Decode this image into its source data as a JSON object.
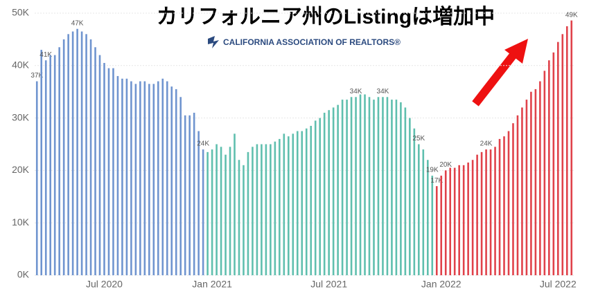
{
  "chart_data": {
    "type": "bar",
    "title": "カリフォルニア州のListingは増加中",
    "subtitle": "CALIFORNIA ASSOCIATION OF REALTORS®",
    "categories": [
      null,
      null,
      null,
      null,
      null,
      null,
      null,
      null,
      null,
      null,
      null,
      null,
      null,
      null,
      null,
      "Jul 2020",
      null,
      null,
      null,
      null,
      null,
      null,
      null,
      null,
      null,
      null,
      null,
      null,
      null,
      null,
      null,
      null,
      null,
      null,
      null,
      null,
      null,
      null,
      null,
      "Jan 2021",
      null,
      null,
      null,
      null,
      null,
      null,
      null,
      null,
      null,
      null,
      null,
      null,
      null,
      null,
      null,
      null,
      null,
      null,
      null,
      null,
      null,
      null,
      null,
      null,
      null,
      "Jul 2021",
      null,
      null,
      null,
      null,
      null,
      null,
      null,
      null,
      null,
      null,
      null,
      null,
      null,
      null,
      null,
      null,
      null,
      null,
      null,
      null,
      null,
      null,
      null,
      null,
      "Jan 2022",
      null,
      null,
      null,
      null,
      null,
      null,
      null,
      null,
      null,
      null,
      null,
      null,
      null,
      null,
      null,
      null,
      null,
      null,
      null,
      null,
      null,
      null,
      null,
      null,
      null,
      "Jul 2022",
      null,
      null,
      null
    ],
    "series": [
      {
        "color": "#6f94cf",
        "values": [
          37,
          43,
          41,
          42,
          42,
          43.5,
          45,
          46,
          46.5,
          47,
          46.5,
          46,
          45,
          43.5,
          42,
          40.5,
          39.5,
          39.5,
          38,
          37.5,
          37.5,
          37,
          36.5,
          37,
          37,
          36.5,
          36.5,
          37,
          37.5,
          37,
          36,
          35.5,
          34,
          30.5,
          30.5,
          31,
          27.5,
          24,
          null,
          null,
          null,
          null,
          null,
          null,
          null,
          null,
          null,
          null,
          null,
          null,
          null,
          null,
          null,
          null,
          null,
          null,
          null,
          null,
          null,
          null,
          null,
          null,
          null,
          null,
          null,
          null,
          null,
          null,
          null,
          null,
          null,
          null,
          null,
          null,
          null,
          null,
          null,
          null,
          null,
          null,
          null,
          null,
          null,
          null,
          null,
          null,
          null,
          null,
          null,
          null,
          null,
          null,
          null,
          null,
          null,
          null,
          null,
          null,
          null,
          null,
          null,
          null,
          null,
          null,
          null,
          null,
          null,
          null,
          null,
          null,
          null,
          null,
          null,
          null,
          null,
          null,
          null,
          null,
          null,
          null
        ],
        "value_labels": [
          "37K",
          null,
          "41K",
          null,
          null,
          null,
          null,
          null,
          null,
          "47K",
          null,
          null,
          null,
          null,
          null,
          null,
          null,
          null,
          null,
          null,
          null,
          null,
          null,
          null,
          null,
          null,
          null,
          null,
          null,
          null,
          null,
          null,
          null,
          null,
          null,
          null,
          null,
          "24K",
          null,
          null,
          null,
          null,
          null,
          null,
          null,
          null,
          null,
          null,
          null,
          null,
          null,
          null,
          null,
          null,
          null,
          null,
          null,
          null,
          null,
          null,
          null,
          null,
          null,
          null,
          null,
          null,
          null,
          null,
          null,
          null,
          null,
          null,
          null,
          null,
          null,
          null,
          null,
          null,
          null,
          null,
          null,
          null,
          null,
          null,
          null,
          null,
          null,
          null,
          null,
          null,
          null,
          null,
          null,
          null,
          null,
          null,
          null,
          null,
          null,
          null,
          null,
          null,
          null,
          null,
          null,
          null,
          null,
          null,
          null,
          null,
          null,
          null,
          null,
          null,
          null,
          null,
          null,
          null,
          null,
          null
        ]
      },
      {
        "color": "#5fbfae",
        "values": [
          null,
          null,
          null,
          null,
          null,
          null,
          null,
          null,
          null,
          null,
          null,
          null,
          null,
          null,
          null,
          null,
          null,
          null,
          null,
          null,
          null,
          null,
          null,
          null,
          null,
          null,
          null,
          null,
          null,
          null,
          null,
          null,
          null,
          null,
          null,
          null,
          null,
          null,
          23.5,
          24,
          25,
          24.5,
          23,
          24.5,
          27,
          22,
          21,
          23.5,
          24.5,
          25,
          25,
          25,
          25,
          25.5,
          26,
          27,
          26.5,
          27,
          27.5,
          27.5,
          28,
          28.5,
          29.5,
          30,
          31,
          31.5,
          32,
          32.5,
          33.5,
          33.5,
          34,
          34,
          34.5,
          34.5,
          34,
          33.5,
          34,
          34,
          34,
          33.5,
          33.5,
          33,
          32,
          30,
          28,
          25,
          24,
          22,
          19,
          null,
          null,
          null,
          null,
          null,
          null,
          null,
          null,
          null,
          null,
          null,
          null,
          null,
          null,
          null,
          null,
          null,
          null,
          null,
          null,
          null,
          null,
          null,
          null,
          null,
          null,
          null,
          null,
          null,
          null,
          null
        ],
        "value_labels": [
          null,
          null,
          null,
          null,
          null,
          null,
          null,
          null,
          null,
          null,
          null,
          null,
          null,
          null,
          null,
          null,
          null,
          null,
          null,
          null,
          null,
          null,
          null,
          null,
          null,
          null,
          null,
          null,
          null,
          null,
          null,
          null,
          null,
          null,
          null,
          null,
          null,
          null,
          null,
          null,
          null,
          null,
          null,
          null,
          null,
          null,
          null,
          null,
          null,
          null,
          null,
          null,
          null,
          null,
          null,
          null,
          null,
          null,
          null,
          null,
          null,
          null,
          null,
          null,
          null,
          null,
          null,
          null,
          null,
          null,
          null,
          "34K",
          null,
          null,
          null,
          null,
          null,
          "34K",
          null,
          null,
          null,
          null,
          null,
          null,
          null,
          "25K",
          null,
          null,
          "19K",
          null,
          null,
          null,
          null,
          null,
          null,
          null,
          null,
          null,
          null,
          null,
          null,
          null,
          null,
          null,
          null,
          null,
          null,
          null,
          null,
          null,
          null,
          null,
          null,
          null,
          null,
          null,
          null,
          null,
          null,
          null
        ]
      },
      {
        "color": "#e0424a",
        "values": [
          null,
          null,
          null,
          null,
          null,
          null,
          null,
          null,
          null,
          null,
          null,
          null,
          null,
          null,
          null,
          null,
          null,
          null,
          null,
          null,
          null,
          null,
          null,
          null,
          null,
          null,
          null,
          null,
          null,
          null,
          null,
          null,
          null,
          null,
          null,
          null,
          null,
          null,
          null,
          null,
          null,
          null,
          null,
          null,
          null,
          null,
          null,
          null,
          null,
          null,
          null,
          null,
          null,
          null,
          null,
          null,
          null,
          null,
          null,
          null,
          null,
          null,
          null,
          null,
          null,
          null,
          null,
          null,
          null,
          null,
          null,
          null,
          null,
          null,
          null,
          null,
          null,
          null,
          null,
          null,
          null,
          null,
          null,
          null,
          null,
          null,
          null,
          null,
          null,
          17,
          19,
          20,
          20.5,
          20.5,
          21,
          21,
          21.5,
          22,
          23,
          23.5,
          24,
          24,
          24.5,
          26,
          26.5,
          27.5,
          29,
          30.5,
          32,
          33.5,
          35,
          35.5,
          37,
          39,
          41,
          42.5,
          44.5,
          46,
          47.5,
          48.6
        ],
        "value_labels": [
          null,
          null,
          null,
          null,
          null,
          null,
          null,
          null,
          null,
          null,
          null,
          null,
          null,
          null,
          null,
          null,
          null,
          null,
          null,
          null,
          null,
          null,
          null,
          null,
          null,
          null,
          null,
          null,
          null,
          null,
          null,
          null,
          null,
          null,
          null,
          null,
          null,
          null,
          null,
          null,
          null,
          null,
          null,
          null,
          null,
          null,
          null,
          null,
          null,
          null,
          null,
          null,
          null,
          null,
          null,
          null,
          null,
          null,
          null,
          null,
          null,
          null,
          null,
          null,
          null,
          null,
          null,
          null,
          null,
          null,
          null,
          null,
          null,
          null,
          null,
          null,
          null,
          null,
          null,
          null,
          null,
          null,
          null,
          null,
          null,
          null,
          null,
          null,
          null,
          "17K",
          null,
          "20K",
          null,
          null,
          null,
          null,
          null,
          null,
          null,
          null,
          "24K",
          null,
          null,
          null,
          null,
          null,
          null,
          null,
          null,
          null,
          null,
          null,
          null,
          null,
          null,
          null,
          null,
          null,
          null,
          "49K"
        ]
      }
    ],
    "ylim": [
      0,
      50
    ],
    "yticks": [
      {
        "value": 0,
        "label": "0K"
      },
      {
        "value": 10,
        "label": "10K"
      },
      {
        "value": 20,
        "label": "20K"
      },
      {
        "value": 30,
        "label": "30K"
      },
      {
        "value": 40,
        "label": "40K"
      },
      {
        "value": 50,
        "label": "50K"
      }
    ],
    "grid": true
  }
}
